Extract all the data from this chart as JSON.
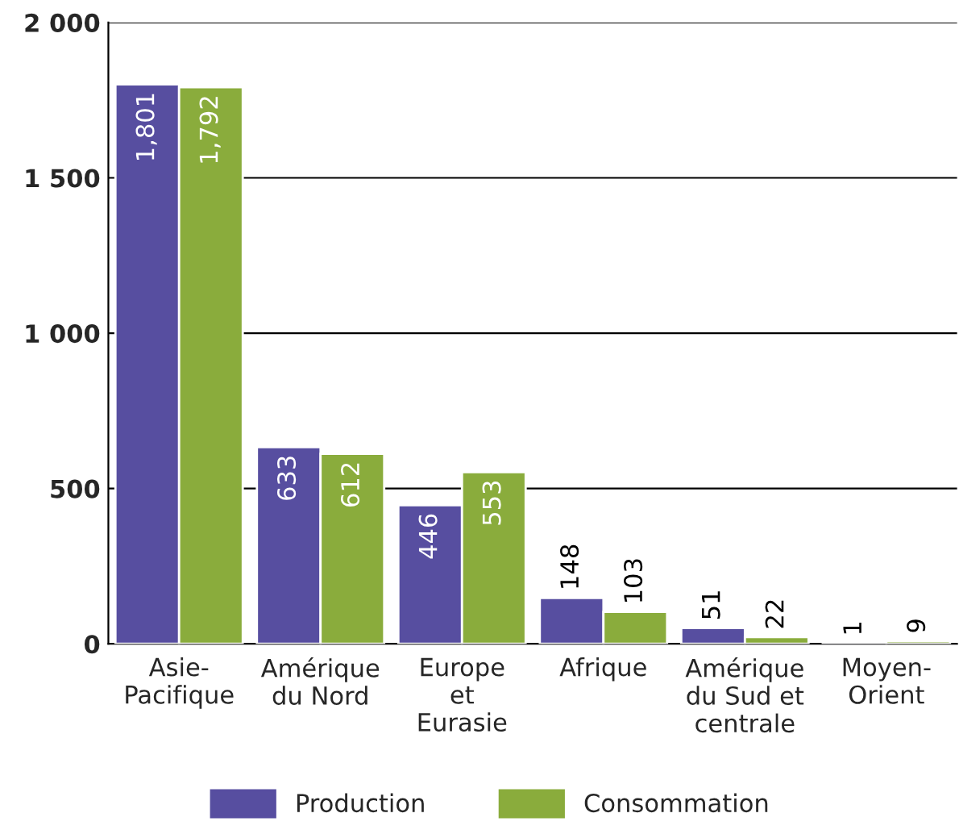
{
  "chart_data": {
    "type": "bar",
    "categories": [
      "Asie-\nPacifique",
      "Amérique\ndu Nord",
      "Europe\net\nEurasie",
      "Afrique",
      "Amérique\ndu Sud et\ncentrale",
      "Moyen-\nOrient"
    ],
    "series": [
      {
        "name": "Production",
        "color": "#574ea0",
        "values": [
          1801,
          633,
          446,
          148,
          51,
          1
        ],
        "value_labels": [
          "1,801",
          "633",
          "446",
          "148",
          "51",
          "1"
        ]
      },
      {
        "name": "Consommation",
        "color": "#8aac3c",
        "values": [
          1792,
          612,
          553,
          103,
          22,
          9
        ],
        "value_labels": [
          "1,792",
          "612",
          "553",
          "103",
          "22",
          "9"
        ]
      }
    ],
    "ylim": [
      0,
      2000
    ],
    "yticks": [
      0,
      500,
      {
        "value": 1000,
        "label": "1 000"
      },
      {
        "value": 1500,
        "label": "1 500"
      },
      {
        "value": 2000,
        "label": "2 000"
      }
    ],
    "grid": "y",
    "legend": "bottom"
  }
}
